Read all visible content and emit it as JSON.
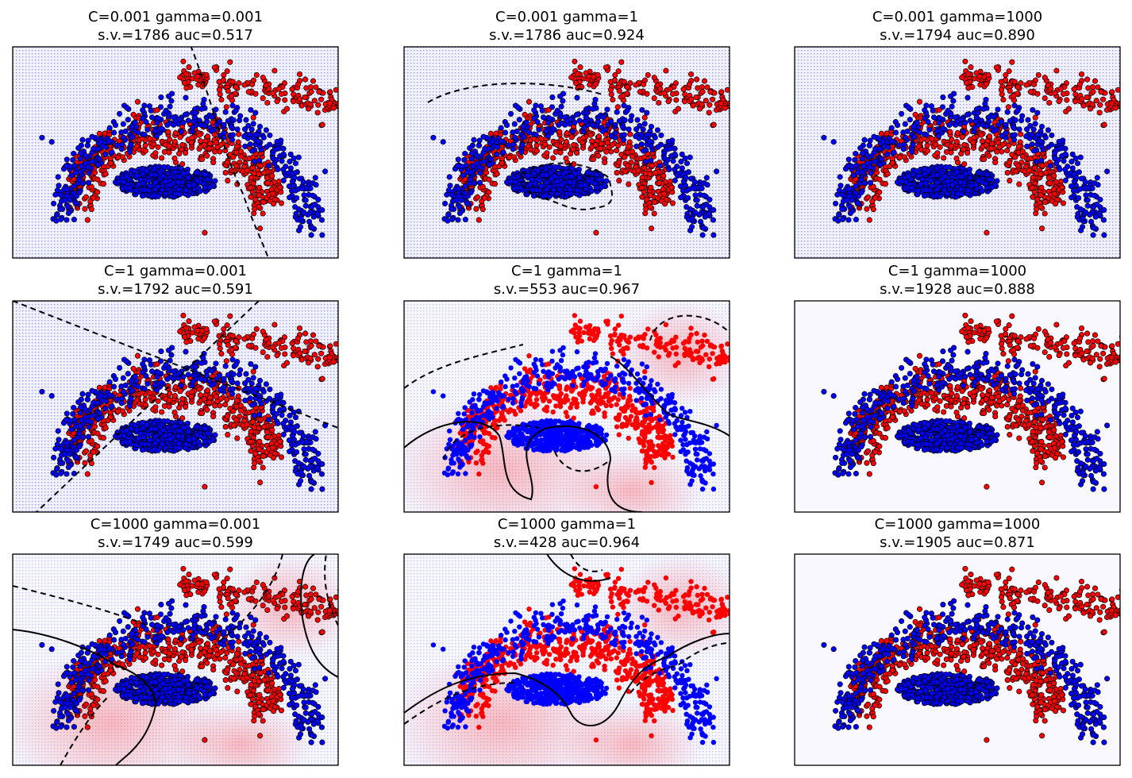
{
  "chart_data": [
    {
      "type": "scatter",
      "title_line1": "C=0.001 gamma=0.001",
      "title_line2": "s.v.=1786 auc=0.517",
      "C": 0.001,
      "gamma": 0.001,
      "support_vectors": 1786,
      "auc": 0.517,
      "ticks_visible": false,
      "background": "uniform-blue",
      "decision_boundary": "single dashed curve on right"
    },
    {
      "type": "scatter",
      "title_line1": "C=0.001 gamma=1",
      "title_line2": "s.v.=1786 auc=0.924",
      "C": 0.001,
      "gamma": 1,
      "support_vectors": 1786,
      "auc": 0.924,
      "ticks_visible": false,
      "background": "uniform-blue",
      "decision_boundary": "dashed contours around central cluster"
    },
    {
      "type": "scatter",
      "title_line1": "C=0.001 gamma=1000",
      "title_line2": "s.v.=1794 auc=0.890",
      "C": 0.001,
      "gamma": 1000,
      "support_vectors": 1794,
      "auc": 0.89,
      "ticks_visible": false,
      "background": "uniform-blue",
      "decision_boundary": "none"
    },
    {
      "type": "scatter",
      "title_line1": "C=1 gamma=0.001",
      "title_line2": "s.v.=1792 auc=0.591",
      "C": 1,
      "gamma": 0.001,
      "support_vectors": 1792,
      "auc": 0.591,
      "ticks_visible": false,
      "background": "uniform-blue",
      "decision_boundary": "dashed straight lines"
    },
    {
      "type": "scatter",
      "title_line1": "C=1 gamma=1",
      "title_line2": "s.v.=553 auc=0.967",
      "C": 1,
      "gamma": 1,
      "support_vectors": 553,
      "auc": 0.967,
      "ticks_visible": false,
      "background": "red-blue gradient",
      "decision_boundary": "solid and dashed curved contours"
    },
    {
      "type": "scatter",
      "title_line1": "C=1 gamma=1000",
      "title_line2": "s.v.=1928 auc=0.888",
      "C": 1,
      "gamma": 1000,
      "support_vectors": 1928,
      "auc": 0.888,
      "ticks_visible": false,
      "background": "near-white",
      "decision_boundary": "none"
    },
    {
      "type": "scatter",
      "title_line1": "C=1000 gamma=0.001",
      "title_line2": "s.v.=1749 auc=0.599",
      "C": 1000,
      "gamma": 0.001,
      "support_vectors": 1749,
      "auc": 0.599,
      "ticks_visible": false,
      "background": "red-blue gradient",
      "decision_boundary": "solid and dashed curved contours"
    },
    {
      "type": "scatter",
      "title_line1": "C=1000 gamma=1",
      "title_line2": "s.v.=428 auc=0.964",
      "C": 1000,
      "gamma": 1,
      "support_vectors": 428,
      "auc": 0.964,
      "ticks_visible": false,
      "background": "red-blue gradient",
      "decision_boundary": "solid and dashed curved contours"
    },
    {
      "type": "scatter",
      "title_line1": "C=1000 gamma=1000",
      "title_line2": "s.v.=1905 auc=0.871",
      "C": 1000,
      "gamma": 1000,
      "support_vectors": 1905,
      "auc": 0.871,
      "ticks_visible": false,
      "background": "near-white",
      "decision_boundary": "none"
    }
  ],
  "colors": {
    "class_positive": "#ff0000",
    "class_negative": "#0000ff",
    "support_vector_edge": "#000000",
    "background_blue": "#cfd2f7",
    "background_red": "#f8c8c8",
    "background_white": "#f8f8fe"
  }
}
